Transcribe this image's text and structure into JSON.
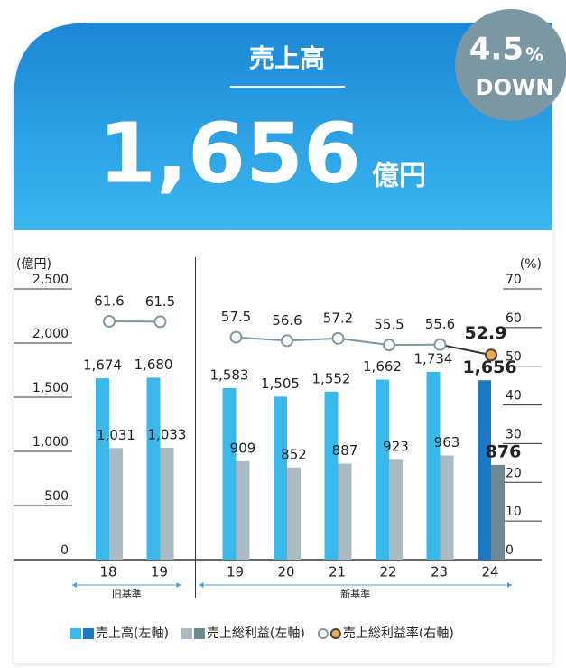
{
  "header": {
    "title": "売上高",
    "amount": "1,656",
    "unit": "億円",
    "badge": {
      "value": "4.5",
      "unit": "%",
      "direction": "DOWN"
    }
  },
  "chart_data": {
    "type": "bar",
    "categories": [
      "18",
      "19",
      "19",
      "20",
      "21",
      "22",
      "23",
      "24"
    ],
    "groups": [
      {
        "label": "旧基準",
        "size": 2
      },
      {
        "label": "新基準",
        "size": 6
      }
    ],
    "ylabel": "(億円)",
    "y2label": "(%)",
    "ylim": [
      0,
      2500
    ],
    "yticks": [
      0,
      500,
      {
        "value": 1000,
        "label": "1,000"
      },
      {
        "value": 1500,
        "label": "1,500"
      },
      {
        "value": 2000,
        "label": "2,000"
      },
      {
        "value": 2500,
        "label": "2,500"
      }
    ],
    "y2lim": [
      0,
      70
    ],
    "y2ticks": [
      0,
      10,
      20,
      30,
      40,
      50,
      60,
      70
    ],
    "series": [
      {
        "name": "売上高(左軸)",
        "type": "bar",
        "color": "#3ab8ec",
        "highlight_color": "#1b78c4",
        "values": [
          1674,
          1680,
          1583,
          1505,
          1552,
          1662,
          1734,
          1656
        ],
        "value_labels": [
          "1,674",
          "1,680",
          "1,583",
          "1,505",
          "1,552",
          "1,662",
          "1,734",
          "1,656"
        ]
      },
      {
        "name": "売上総利益(左軸)",
        "type": "bar",
        "color": "#a9bac3",
        "highlight_color": "#6d8895",
        "values": [
          1031,
          1033,
          909,
          852,
          887,
          923,
          963,
          876
        ],
        "value_labels": [
          "1,031",
          "1,033",
          "909",
          "852",
          "887",
          "923",
          "963",
          "876"
        ]
      },
      {
        "name": "売上総利益率(右軸)",
        "type": "line",
        "axis": "y2",
        "color": "#7f98a6",
        "highlight_color": "#f0a94f",
        "values": [
          61.6,
          61.5,
          57.5,
          56.6,
          57.2,
          55.5,
          55.6,
          52.9
        ]
      }
    ]
  }
}
